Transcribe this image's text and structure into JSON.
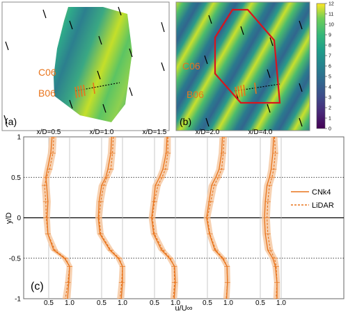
{
  "panels": {
    "a": {
      "label": "(a)",
      "turbine_labels": [
        "C06",
        "B06"
      ]
    },
    "b": {
      "label": "(b)",
      "turbine_labels": [
        "C06",
        "B06"
      ],
      "colorbar": {
        "ticks": [
          "0",
          "1",
          "2",
          "3",
          "4",
          "5",
          "6",
          "7",
          "8",
          "9",
          "10",
          "11",
          "12"
        ],
        "range": [
          0,
          12
        ],
        "colormap": "viridis"
      }
    },
    "c": {
      "label": "(c)"
    }
  },
  "colors": {
    "turbine_label": "#e8741c",
    "profile": "#e8741c",
    "band": "#f6c9a3",
    "domain_outline": "#d9141c"
  },
  "chart_data": {
    "type": "line",
    "panel": "(c)",
    "xlabel": "u/U∞",
    "ylabel": "y/D",
    "ylim": [
      -1,
      1
    ],
    "yticks": [
      "1",
      "0.5",
      "0",
      "-0.5",
      "-1"
    ],
    "xticks_each": [
      "0.5",
      "1.0"
    ],
    "grid": "vertical lines at u/U∞ = 0.5 and 1.0 in each subplot; dotted horizontal lines at y/D = ±0.5; solid line at y/D = 0",
    "legend": {
      "placement": "right",
      "entries": [
        "CNk4",
        "LiDAR"
      ]
    },
    "y": [
      1.0,
      0.8,
      0.6,
      0.5,
      0.4,
      0.2,
      0.0,
      -0.2,
      -0.4,
      -0.5,
      -0.6,
      -0.8,
      -1.0
    ],
    "subplots": [
      {
        "title": "x/D=0.5",
        "series": [
          {
            "name": "CNk4",
            "values": [
              0.58,
              0.55,
              0.47,
              0.43,
              0.45,
              0.48,
              0.46,
              0.48,
              0.62,
              0.88,
              1.0,
              0.98,
              0.95
            ]
          },
          {
            "name": "LiDAR",
            "values": [
              0.62,
              0.6,
              0.52,
              0.45,
              0.4,
              0.43,
              0.44,
              0.48,
              0.65,
              0.9,
              1.0,
              0.96,
              0.9
            ]
          }
        ]
      },
      {
        "title": "x/D=1.0",
        "series": [
          {
            "name": "CNk4",
            "values": [
              0.74,
              0.72,
              0.65,
              0.6,
              0.5,
              0.44,
              0.42,
              0.46,
              0.7,
              0.9,
              1.0,
              1.0,
              0.97
            ]
          },
          {
            "name": "LiDAR",
            "values": [
              0.78,
              0.76,
              0.72,
              0.63,
              0.55,
              0.48,
              0.44,
              0.48,
              0.72,
              0.92,
              1.0,
              0.98,
              0.94
            ]
          }
        ]
      },
      {
        "title": "x/D=1.5",
        "series": [
          {
            "name": "CNk4",
            "values": [
              0.8,
              0.78,
              0.7,
              0.62,
              0.52,
              0.48,
              0.43,
              0.48,
              0.67,
              0.86,
              0.98,
              1.0,
              0.97
            ]
          },
          {
            "name": "LiDAR",
            "values": [
              0.82,
              0.82,
              0.76,
              0.68,
              0.58,
              0.5,
              0.45,
              0.5,
              0.7,
              0.88,
              0.97,
              0.98,
              0.95
            ]
          }
        ]
      },
      {
        "title": "x/D=2.0",
        "series": [
          {
            "name": "CNk4",
            "values": [
              0.86,
              0.84,
              0.78,
              0.7,
              0.6,
              0.54,
              0.48,
              0.55,
              0.68,
              0.86,
              0.97,
              0.98,
              0.96
            ]
          },
          {
            "name": "LiDAR",
            "values": [
              0.9,
              0.88,
              0.84,
              0.76,
              0.66,
              0.58,
              0.5,
              0.56,
              0.7,
              0.88,
              0.97,
              0.98,
              0.95
            ]
          }
        ]
      },
      {
        "title": "x/D=4.0",
        "series": [
          {
            "name": "CNk4",
            "values": [
              0.82,
              0.8,
              0.76,
              0.72,
              0.66,
              0.62,
              0.6,
              0.62,
              0.68,
              0.8,
              0.86,
              0.9,
              0.9
            ]
          },
          {
            "name": "LiDAR",
            "values": [
              0.84,
              0.86,
              0.82,
              0.78,
              0.72,
              0.68,
              0.66,
              0.68,
              0.74,
              0.84,
              0.88,
              0.9,
              0.88
            ]
          }
        ]
      }
    ]
  }
}
